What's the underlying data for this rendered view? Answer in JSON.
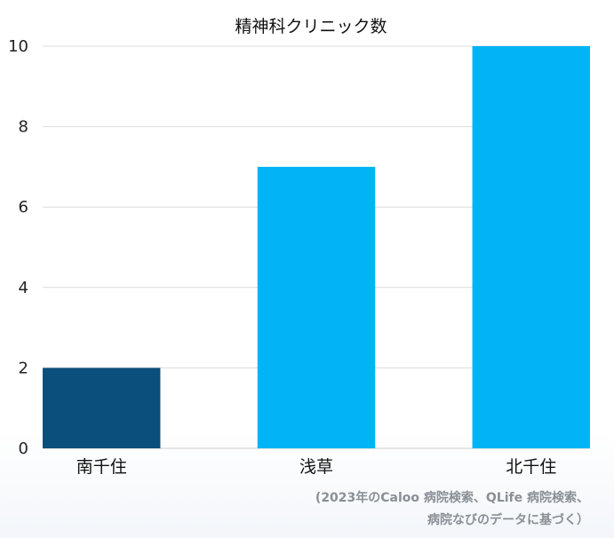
{
  "chart_data": {
    "type": "bar",
    "title": "精神科クリニック数",
    "categories": [
      "南千住",
      "浅草",
      "北千住"
    ],
    "values": [
      2,
      7,
      10
    ],
    "bar_colors": [
      "#0b4f7c",
      "#00b4f5",
      "#00b4f5"
    ],
    "ylim": [
      0,
      10
    ],
    "yticks": [
      0,
      2,
      4,
      6,
      8,
      10
    ],
    "grid": true,
    "xlabel": "",
    "ylabel": ""
  },
  "source_note": {
    "line1": "(2023年のCaloo 病院検索、QLife 病院検索、",
    "line2": "病院なびのデータに基づく）"
  }
}
